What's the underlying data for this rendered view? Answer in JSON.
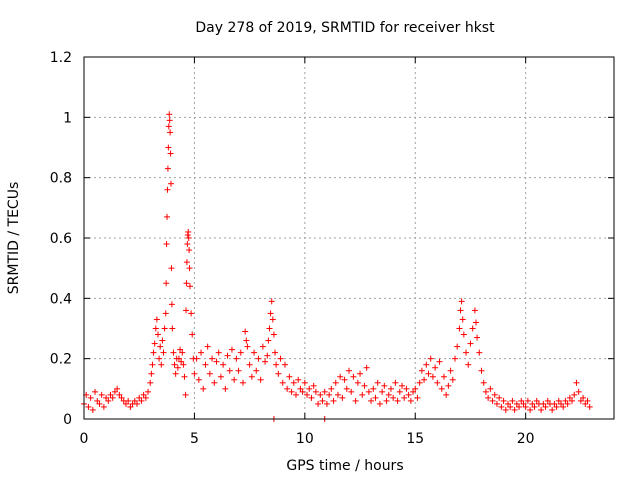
{
  "chart_data": {
    "type": "scatter",
    "title": "Day 278 of 2019, SRMTID for receiver hkst",
    "xlabel": "GPS time / hours",
    "ylabel": "SRMTID / TECUs",
    "xlim": [
      0,
      24
    ],
    "ylim": [
      0,
      1.2
    ],
    "xticks": [
      0,
      5,
      10,
      15,
      20
    ],
    "xtick_labels": [
      "0",
      "5",
      "10",
      "15",
      "20"
    ],
    "yticks": [
      0,
      0.2,
      0.4,
      0.6,
      0.8,
      1.0,
      1.2
    ],
    "ytick_labels": [
      "0",
      "0.2",
      "0.4",
      "0.6",
      "0.8",
      "1",
      "1.2"
    ],
    "grid": true,
    "marker": "+",
    "color": "#ff0000",
    "series": [
      {
        "name": "SRMTID",
        "points": [
          [
            0.0,
            0.05
          ],
          [
            0.1,
            0.08
          ],
          [
            0.2,
            0.04
          ],
          [
            0.3,
            0.07
          ],
          [
            0.4,
            0.03
          ],
          [
            0.5,
            0.09
          ],
          [
            0.6,
            0.06
          ],
          [
            0.7,
            0.05
          ],
          [
            0.8,
            0.08
          ],
          [
            0.9,
            0.04
          ],
          [
            1.0,
            0.07
          ],
          [
            1.1,
            0.06
          ],
          [
            1.2,
            0.08
          ],
          [
            1.3,
            0.07
          ],
          [
            1.4,
            0.09
          ],
          [
            1.5,
            0.1
          ],
          [
            1.6,
            0.08
          ],
          [
            1.7,
            0.07
          ],
          [
            1.8,
            0.06
          ],
          [
            1.9,
            0.05
          ],
          [
            2.0,
            0.06
          ],
          [
            2.1,
            0.04
          ],
          [
            2.2,
            0.05
          ],
          [
            2.3,
            0.06
          ],
          [
            2.4,
            0.05
          ],
          [
            2.5,
            0.07
          ],
          [
            2.6,
            0.06
          ],
          [
            2.7,
            0.08
          ],
          [
            2.8,
            0.07
          ],
          [
            2.9,
            0.09
          ],
          [
            3.0,
            0.12
          ],
          [
            3.05,
            0.15
          ],
          [
            3.1,
            0.18
          ],
          [
            3.15,
            0.22
          ],
          [
            3.2,
            0.25
          ],
          [
            3.25,
            0.3
          ],
          [
            3.3,
            0.33
          ],
          [
            3.35,
            0.28
          ],
          [
            3.4,
            0.2
          ],
          [
            3.45,
            0.24
          ],
          [
            3.5,
            0.18
          ],
          [
            3.55,
            0.26
          ],
          [
            3.6,
            0.22
          ],
          [
            3.65,
            0.3
          ],
          [
            3.7,
            0.35
          ],
          [
            3.72,
            0.45
          ],
          [
            3.74,
            0.58
          ],
          [
            3.76,
            0.67
          ],
          [
            3.78,
            0.76
          ],
          [
            3.8,
            0.83
          ],
          [
            3.82,
            0.9
          ],
          [
            3.84,
            0.97
          ],
          [
            3.86,
            1.01
          ],
          [
            3.88,
            0.99
          ],
          [
            3.9,
            0.95
          ],
          [
            3.92,
            0.88
          ],
          [
            3.94,
            0.78
          ],
          [
            3.96,
            0.5
          ],
          [
            3.98,
            0.38
          ],
          [
            4.0,
            0.3
          ],
          [
            4.05,
            0.22
          ],
          [
            4.1,
            0.18
          ],
          [
            4.15,
            0.15
          ],
          [
            4.2,
            0.2
          ],
          [
            4.25,
            0.17
          ],
          [
            4.3,
            0.2
          ],
          [
            4.35,
            0.23
          ],
          [
            4.4,
            0.19
          ],
          [
            4.45,
            0.22
          ],
          [
            4.5,
            0.18
          ],
          [
            4.55,
            0.14
          ],
          [
            4.6,
            0.08
          ],
          [
            4.62,
            0.36
          ],
          [
            4.64,
            0.45
          ],
          [
            4.66,
            0.52
          ],
          [
            4.68,
            0.58
          ],
          [
            4.7,
            0.61
          ],
          [
            4.72,
            0.62
          ],
          [
            4.74,
            0.6
          ],
          [
            4.76,
            0.56
          ],
          [
            4.78,
            0.5
          ],
          [
            4.8,
            0.44
          ],
          [
            4.85,
            0.35
          ],
          [
            4.9,
            0.28
          ],
          [
            4.95,
            0.2
          ],
          [
            5.0,
            0.15
          ],
          [
            5.1,
            0.2
          ],
          [
            5.2,
            0.13
          ],
          [
            5.3,
            0.22
          ],
          [
            5.4,
            0.1
          ],
          [
            5.5,
            0.18
          ],
          [
            5.6,
            0.24
          ],
          [
            5.7,
            0.15
          ],
          [
            5.8,
            0.2
          ],
          [
            5.9,
            0.12
          ],
          [
            6.0,
            0.19
          ],
          [
            6.1,
            0.22
          ],
          [
            6.2,
            0.14
          ],
          [
            6.3,
            0.18
          ],
          [
            6.4,
            0.1
          ],
          [
            6.5,
            0.21
          ],
          [
            6.6,
            0.16
          ],
          [
            6.7,
            0.23
          ],
          [
            6.8,
            0.13
          ],
          [
            6.9,
            0.2
          ],
          [
            7.0,
            0.16
          ],
          [
            7.1,
            0.22
          ],
          [
            7.2,
            0.12
          ],
          [
            7.3,
            0.29
          ],
          [
            7.35,
            0.26
          ],
          [
            7.4,
            0.24
          ],
          [
            7.5,
            0.18
          ],
          [
            7.6,
            0.14
          ],
          [
            7.7,
            0.22
          ],
          [
            7.8,
            0.16
          ],
          [
            7.9,
            0.2
          ],
          [
            8.0,
            0.13
          ],
          [
            8.1,
            0.24
          ],
          [
            8.2,
            0.19
          ],
          [
            8.3,
            0.21
          ],
          [
            8.35,
            0.26
          ],
          [
            8.4,
            0.3
          ],
          [
            8.45,
            0.35
          ],
          [
            8.5,
            0.39
          ],
          [
            8.55,
            0.33
          ],
          [
            8.6,
            0.28
          ],
          [
            8.65,
            0.22
          ],
          [
            8.7,
            0.18
          ],
          [
            8.8,
            0.15
          ],
          [
            8.9,
            0.2
          ],
          [
            9.0,
            0.12
          ],
          [
            9.1,
            0.18
          ],
          [
            9.2,
            0.1
          ],
          [
            9.3,
            0.14
          ],
          [
            9.4,
            0.09
          ],
          [
            9.5,
            0.12
          ],
          [
            9.6,
            0.08
          ],
          [
            9.7,
            0.13
          ],
          [
            9.8,
            0.1
          ],
          [
            9.9,
            0.09
          ],
          [
            10.0,
            0.12
          ],
          [
            10.1,
            0.08
          ],
          [
            10.2,
            0.1
          ],
          [
            10.3,
            0.07
          ],
          [
            10.4,
            0.11
          ],
          [
            10.5,
            0.09
          ],
          [
            10.6,
            0.05
          ],
          [
            10.7,
            0.08
          ],
          [
            10.8,
            0.06
          ],
          [
            10.9,
            0.09
          ],
          [
            11.0,
            0.05
          ],
          [
            11.1,
            0.08
          ],
          [
            11.2,
            0.1
          ],
          [
            11.3,
            0.06
          ],
          [
            11.4,
            0.12
          ],
          [
            11.5,
            0.08
          ],
          [
            11.6,
            0.14
          ],
          [
            11.7,
            0.07
          ],
          [
            11.8,
            0.13
          ],
          [
            11.9,
            0.1
          ],
          [
            12.0,
            0.16
          ],
          [
            12.1,
            0.09
          ],
          [
            12.2,
            0.14
          ],
          [
            12.3,
            0.06
          ],
          [
            12.4,
            0.12
          ],
          [
            12.5,
            0.15
          ],
          [
            12.6,
            0.08
          ],
          [
            12.7,
            0.11
          ],
          [
            12.8,
            0.17
          ],
          [
            12.9,
            0.09
          ],
          [
            13.0,
            0.06
          ],
          [
            13.1,
            0.1
          ],
          [
            13.2,
            0.07
          ],
          [
            13.3,
            0.12
          ],
          [
            13.4,
            0.05
          ],
          [
            13.5,
            0.09
          ],
          [
            13.6,
            0.11
          ],
          [
            13.7,
            0.06
          ],
          [
            13.8,
            0.08
          ],
          [
            13.9,
            0.1
          ],
          [
            14.0,
            0.07
          ],
          [
            14.1,
            0.12
          ],
          [
            14.2,
            0.06
          ],
          [
            14.3,
            0.09
          ],
          [
            14.4,
            0.11
          ],
          [
            14.5,
            0.07
          ],
          [
            14.6,
            0.1
          ],
          [
            14.7,
            0.08
          ],
          [
            14.8,
            0.06
          ],
          [
            14.9,
            0.09
          ],
          [
            15.0,
            0.1
          ],
          [
            15.1,
            0.07
          ],
          [
            15.2,
            0.12
          ],
          [
            15.3,
            0.16
          ],
          [
            15.4,
            0.13
          ],
          [
            15.5,
            0.18
          ],
          [
            15.6,
            0.15
          ],
          [
            15.7,
            0.2
          ],
          [
            15.8,
            0.14
          ],
          [
            15.9,
            0.17
          ],
          [
            16.0,
            0.12
          ],
          [
            16.1,
            0.19
          ],
          [
            16.2,
            0.1
          ],
          [
            16.3,
            0.14
          ],
          [
            16.4,
            0.08
          ],
          [
            16.5,
            0.11
          ],
          [
            16.6,
            0.16
          ],
          [
            16.7,
            0.13
          ],
          [
            16.8,
            0.2
          ],
          [
            16.9,
            0.24
          ],
          [
            17.0,
            0.3
          ],
          [
            17.05,
            0.36
          ],
          [
            17.1,
            0.39
          ],
          [
            17.15,
            0.33
          ],
          [
            17.2,
            0.28
          ],
          [
            17.3,
            0.22
          ],
          [
            17.4,
            0.18
          ],
          [
            17.5,
            0.25
          ],
          [
            17.6,
            0.3
          ],
          [
            17.7,
            0.36
          ],
          [
            17.75,
            0.32
          ],
          [
            17.8,
            0.27
          ],
          [
            17.9,
            0.22
          ],
          [
            18.0,
            0.16
          ],
          [
            18.1,
            0.12
          ],
          [
            18.2,
            0.09
          ],
          [
            18.3,
            0.07
          ],
          [
            18.4,
            0.1
          ],
          [
            18.5,
            0.06
          ],
          [
            18.6,
            0.08
          ],
          [
            18.7,
            0.05
          ],
          [
            18.8,
            0.07
          ],
          [
            18.9,
            0.04
          ],
          [
            19.0,
            0.06
          ],
          [
            19.1,
            0.03
          ],
          [
            19.2,
            0.05
          ],
          [
            19.3,
            0.04
          ],
          [
            19.4,
            0.06
          ],
          [
            19.5,
            0.03
          ],
          [
            19.6,
            0.05
          ],
          [
            19.7,
            0.04
          ],
          [
            19.8,
            0.06
          ],
          [
            19.9,
            0.05
          ],
          [
            20.0,
            0.04
          ],
          [
            20.1,
            0.06
          ],
          [
            20.2,
            0.03
          ],
          [
            20.3,
            0.05
          ],
          [
            20.4,
            0.04
          ],
          [
            20.5,
            0.06
          ],
          [
            20.6,
            0.05
          ],
          [
            20.7,
            0.03
          ],
          [
            20.8,
            0.05
          ],
          [
            20.9,
            0.04
          ],
          [
            21.0,
            0.06
          ],
          [
            21.1,
            0.05
          ],
          [
            21.2,
            0.03
          ],
          [
            21.3,
            0.05
          ],
          [
            21.4,
            0.04
          ],
          [
            21.5,
            0.06
          ],
          [
            21.6,
            0.05
          ],
          [
            21.7,
            0.04
          ],
          [
            21.8,
            0.06
          ],
          [
            21.9,
            0.05
          ],
          [
            22.0,
            0.07
          ],
          [
            22.1,
            0.06
          ],
          [
            22.2,
            0.08
          ],
          [
            22.3,
            0.12
          ],
          [
            22.4,
            0.09
          ],
          [
            22.5,
            0.06
          ],
          [
            22.6,
            0.07
          ],
          [
            22.7,
            0.05
          ],
          [
            22.8,
            0.06
          ],
          [
            22.9,
            0.04
          ],
          [
            8.6,
            0.0
          ],
          [
            10.9,
            0.0
          ]
        ]
      }
    ]
  }
}
